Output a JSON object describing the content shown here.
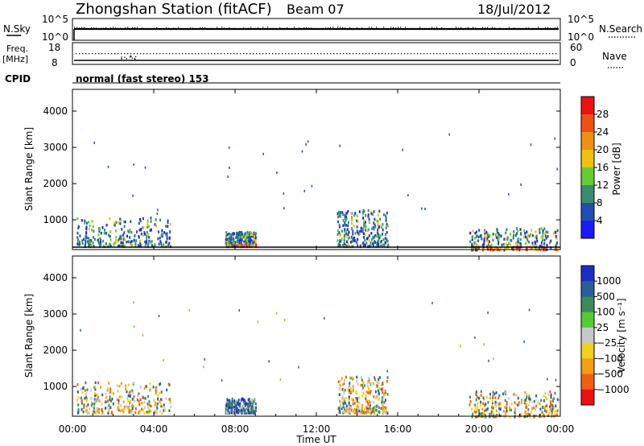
{
  "header": {
    "title": "Zhongshan Station (fitACF)",
    "beam": "Beam 07",
    "date": "18/Jul/2012"
  },
  "top_panels": {
    "nsky_label": "N.Sky",
    "nsky_ticks": [
      "10^5",
      "10^0"
    ],
    "nsearch_label": "N.Search",
    "nsearch_ticks": [
      "10^5",
      "10^0"
    ],
    "freq_label": "Freq.",
    "freq_unit": "[MHz]",
    "freq_ticks": [
      "18",
      "8"
    ],
    "nave_label": "Nave",
    "nave_ticks": [
      "60",
      "0"
    ],
    "cpid_label": "CPID",
    "cpid_text": "normal (fast stereo) 153"
  },
  "chart_data": [
    {
      "type": "heatmap",
      "name": "power",
      "ylabel": "Slant Range [km]",
      "yticks": [
        "1000",
        "2000",
        "3000",
        "4000"
      ],
      "ylim": [
        180,
        4600
      ],
      "xlim": [
        0,
        24
      ],
      "colorbar": {
        "label": "Power [dB]",
        "ticks": [
          "4",
          "8",
          "12",
          "16",
          "20",
          "24",
          "28"
        ],
        "colors": [
          "#1a1aff",
          "#1f4fb0",
          "#3a8c6e",
          "#66cc33",
          "#f0c010",
          "#f09010",
          "#f05010",
          "#ee1010"
        ],
        "range": [
          0,
          32
        ]
      },
      "activity": [
        {
          "x": [
            0.2,
            4.8
          ],
          "y": [
            300,
            1100
          ],
          "value": "low-to-moderate"
        },
        {
          "x": [
            7.5,
            9.0
          ],
          "y": [
            300,
            700
          ],
          "value": "moderate-to-high"
        },
        {
          "x": [
            13.0,
            15.5
          ],
          "y": [
            300,
            1300
          ],
          "value": "low"
        },
        {
          "x": [
            19.5,
            23.9
          ],
          "y": [
            200,
            800
          ],
          "value": "moderate-to-high"
        }
      ]
    },
    {
      "type": "heatmap",
      "name": "velocity",
      "ylabel": "Slant Range [km]",
      "yticks": [
        "1000",
        "2000",
        "3000",
        "4000"
      ],
      "ylim": [
        180,
        4600
      ],
      "xlim": [
        0,
        24
      ],
      "xticks": [
        "00:00",
        "04:00",
        "08:00",
        "12:00",
        "16:00",
        "20:00",
        "00:00"
      ],
      "xlabel": "Time UT",
      "colorbar": {
        "label": "Velocity [m s⁻¹]",
        "ticks": [
          "1000",
          "500",
          "100",
          "25",
          "−25",
          "−100",
          "−500",
          "−1000"
        ],
        "colors": [
          "#1b2fc7",
          "#2a5f9a",
          "#3d8a5c",
          "#55cc33",
          "#c8c8c8",
          "#f0d020",
          "#f0a010",
          "#f06010",
          "#ee1010"
        ]
      },
      "activity": [
        {
          "x": [
            0.2,
            4.8
          ],
          "y": [
            300,
            1150
          ],
          "value": "negative (orange)"
        },
        {
          "x": [
            7.5,
            9.0
          ],
          "y": [
            300,
            700
          ],
          "value": "positive (blue)"
        },
        {
          "x": [
            13.0,
            15.5
          ],
          "y": [
            300,
            1300
          ],
          "value": "mixed"
        },
        {
          "x": [
            19.5,
            23.9
          ],
          "y": [
            200,
            900
          ],
          "value": "negative (orange)"
        }
      ]
    }
  ]
}
